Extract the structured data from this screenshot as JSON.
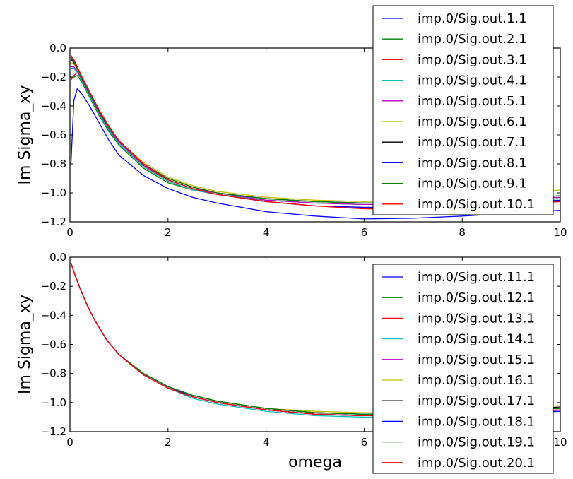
{
  "chart_data": [
    {
      "type": "line",
      "title": "",
      "xlabel": "",
      "ylabel": "Im Sigma_xy",
      "xlim": [
        0,
        10
      ],
      "ylim": [
        -1.2,
        0.0
      ],
      "xticks": [
        "0",
        "2",
        "4",
        "6",
        "8",
        "10"
      ],
      "xtick_values": [
        0,
        2,
        4,
        6,
        8,
        10
      ],
      "yticks": [
        "0.0",
        "−0.2",
        "−0.4",
        "−0.6",
        "−0.8",
        "−1.0",
        "−1.2"
      ],
      "ytick_values": [
        0.0,
        -0.2,
        -0.4,
        -0.6,
        -0.8,
        -1.0,
        -1.2
      ],
      "grid": false,
      "legend_position": "upper-right",
      "series": [
        {
          "name": "imp.0/Sig.out.1.1",
          "color": "#0000ff",
          "x": [
            0.02,
            0.08,
            0.15,
            0.25,
            0.4,
            0.6,
            0.8,
            1.0,
            1.5,
            2.0,
            2.5,
            3.0,
            4.0,
            5.0,
            6.0,
            7.0,
            8.0,
            9.0,
            10.0
          ],
          "y": [
            -0.8,
            -0.36,
            -0.28,
            -0.32,
            -0.4,
            -0.52,
            -0.64,
            -0.74,
            -0.88,
            -0.97,
            -1.03,
            -1.07,
            -1.13,
            -1.16,
            -1.18,
            -1.175,
            -1.16,
            -1.14,
            -1.12
          ]
        },
        {
          "name": "imp.0/Sig.out.2.1",
          "color": "#008000",
          "x": [
            0.02,
            0.08,
            0.15,
            0.25,
            0.4,
            0.6,
            0.8,
            1.0,
            1.5,
            2.0,
            2.5,
            3.0,
            4.0,
            5.0,
            6.0,
            7.0,
            8.0,
            9.0,
            10.0
          ],
          "y": [
            -0.21,
            -0.2,
            -0.19,
            -0.24,
            -0.34,
            -0.47,
            -0.58,
            -0.67,
            -0.83,
            -0.93,
            -0.98,
            -1.01,
            -1.05,
            -1.07,
            -1.08,
            -1.08,
            -1.07,
            -1.06,
            -1.04
          ]
        },
        {
          "name": "imp.0/Sig.out.3.1",
          "color": "#ff0000",
          "x": [
            0.02,
            0.08,
            0.15,
            0.25,
            0.4,
            0.6,
            0.8,
            1.0,
            1.5,
            2.0,
            2.5,
            3.0,
            4.0,
            5.0,
            6.0,
            7.0,
            8.0,
            9.0,
            10.0
          ],
          "y": [
            -0.22,
            -0.19,
            -0.17,
            -0.22,
            -0.32,
            -0.45,
            -0.56,
            -0.65,
            -0.81,
            -0.92,
            -0.98,
            -1.01,
            -1.06,
            -1.09,
            -1.1,
            -1.1,
            -1.09,
            -1.08,
            -1.06
          ]
        },
        {
          "name": "imp.0/Sig.out.4.1",
          "color": "#00bfbf",
          "x": [
            0.02,
            0.08,
            0.15,
            0.25,
            0.4,
            0.6,
            0.8,
            1.0,
            1.5,
            2.0,
            2.5,
            3.0,
            4.0,
            5.0,
            6.0,
            7.0,
            8.0,
            9.0,
            10.0
          ],
          "y": [
            -0.14,
            -0.14,
            -0.17,
            -0.23,
            -0.33,
            -0.46,
            -0.57,
            -0.66,
            -0.82,
            -0.92,
            -0.98,
            -1.01,
            -1.05,
            -1.07,
            -1.08,
            -1.08,
            -1.07,
            -1.06,
            -1.04
          ]
        },
        {
          "name": "imp.0/Sig.out.5.1",
          "color": "#bf00bf",
          "x": [
            0.02,
            0.08,
            0.15,
            0.25,
            0.4,
            0.6,
            0.8,
            1.0,
            1.5,
            2.0,
            2.5,
            3.0,
            4.0,
            5.0,
            6.0,
            7.0,
            8.0,
            9.0,
            10.0
          ],
          "y": [
            -0.13,
            -0.13,
            -0.16,
            -0.22,
            -0.32,
            -0.45,
            -0.56,
            -0.65,
            -0.81,
            -0.91,
            -0.97,
            -1.0,
            -1.05,
            -1.07,
            -1.08,
            -1.08,
            -1.07,
            -1.05,
            -1.03
          ]
        },
        {
          "name": "imp.0/Sig.out.6.1",
          "color": "#bfbf00",
          "x": [
            0.02,
            0.08,
            0.15,
            0.25,
            0.4,
            0.6,
            0.8,
            1.0,
            1.5,
            2.0,
            2.5,
            3.0,
            4.0,
            5.0,
            6.0,
            7.0,
            8.0,
            9.0,
            10.0
          ],
          "y": [
            -0.1,
            -0.11,
            -0.15,
            -0.21,
            -0.31,
            -0.44,
            -0.55,
            -0.64,
            -0.79,
            -0.89,
            -0.95,
            -0.99,
            -1.03,
            -1.05,
            -1.06,
            -1.05,
            -1.03,
            -1.01,
            -0.98
          ]
        },
        {
          "name": "imp.0/Sig.out.7.1",
          "color": "#000000",
          "x": [
            0.02,
            0.08,
            0.15,
            0.25,
            0.4,
            0.6,
            0.8,
            1.0,
            1.5,
            2.0,
            2.5,
            3.0,
            4.0,
            5.0,
            6.0,
            7.0,
            8.0,
            9.0,
            10.0
          ],
          "y": [
            -0.08,
            -0.1,
            -0.14,
            -0.21,
            -0.31,
            -0.44,
            -0.55,
            -0.64,
            -0.8,
            -0.9,
            -0.96,
            -1.0,
            -1.04,
            -1.06,
            -1.07,
            -1.07,
            -1.06,
            -1.04,
            -1.02
          ]
        },
        {
          "name": "imp.0/Sig.out.8.1",
          "color": "#0000ff",
          "x": [
            0.02,
            0.08,
            0.15,
            0.25,
            0.4,
            0.6,
            0.8,
            1.0,
            1.5,
            2.0,
            2.5,
            3.0,
            4.0,
            5.0,
            6.0,
            7.0,
            8.0,
            9.0,
            10.0
          ],
          "y": [
            -0.07,
            -0.09,
            -0.14,
            -0.21,
            -0.31,
            -0.44,
            -0.55,
            -0.64,
            -0.8,
            -0.91,
            -0.97,
            -1.01,
            -1.06,
            -1.09,
            -1.1,
            -1.1,
            -1.09,
            -1.07,
            -1.05
          ]
        },
        {
          "name": "imp.0/Sig.out.9.1",
          "color": "#008000",
          "x": [
            0.02,
            0.08,
            0.15,
            0.25,
            0.4,
            0.6,
            0.8,
            1.0,
            1.5,
            2.0,
            2.5,
            3.0,
            4.0,
            5.0,
            6.0,
            7.0,
            8.0,
            9.0,
            10.0
          ],
          "y": [
            -0.06,
            -0.09,
            -0.14,
            -0.21,
            -0.31,
            -0.44,
            -0.55,
            -0.64,
            -0.8,
            -0.9,
            -0.96,
            -1.0,
            -1.04,
            -1.06,
            -1.07,
            -1.07,
            -1.06,
            -1.04,
            -1.02
          ]
        },
        {
          "name": "imp.0/Sig.out.10.1",
          "color": "#ff0000",
          "x": [
            0.02,
            0.08,
            0.15,
            0.25,
            0.4,
            0.6,
            0.8,
            1.0,
            1.5,
            2.0,
            2.5,
            3.0,
            4.0,
            5.0,
            6.0,
            7.0,
            8.0,
            9.0,
            10.0
          ],
          "y": [
            -0.05,
            -0.08,
            -0.13,
            -0.2,
            -0.3,
            -0.43,
            -0.54,
            -0.64,
            -0.8,
            -0.91,
            -0.97,
            -1.01,
            -1.06,
            -1.09,
            -1.11,
            -1.11,
            -1.1,
            -1.08,
            -1.06
          ]
        }
      ]
    },
    {
      "type": "line",
      "title": "",
      "xlabel": "omega",
      "ylabel": "Im Sigma_xy",
      "xlim": [
        0,
        10
      ],
      "ylim": [
        -1.2,
        0.0
      ],
      "xticks": [
        "0",
        "2",
        "4",
        "6",
        "8",
        "10"
      ],
      "xtick_values": [
        0,
        2,
        4,
        6,
        8,
        10
      ],
      "yticks": [
        "0.0",
        "−0.2",
        "−0.4",
        "−0.6",
        "−0.8",
        "−1.0",
        "−1.2"
      ],
      "ytick_values": [
        0.0,
        -0.2,
        -0.4,
        -0.6,
        -0.8,
        -1.0,
        -1.2
      ],
      "grid": false,
      "legend_position": "upper-right",
      "series": [
        {
          "name": "imp.0/Sig.out.11.1",
          "color": "#0000ff",
          "x": [
            0.02,
            0.1,
            0.2,
            0.35,
            0.5,
            0.75,
            1.0,
            1.5,
            2.0,
            2.5,
            3.0,
            4.0,
            5.0,
            6.0,
            7.0,
            8.0,
            9.0,
            10.0
          ],
          "y": [
            -0.04,
            -0.12,
            -0.21,
            -0.33,
            -0.43,
            -0.57,
            -0.67,
            -0.81,
            -0.9,
            -0.96,
            -1.0,
            -1.05,
            -1.08,
            -1.09,
            -1.09,
            -1.08,
            -1.07,
            -1.06
          ]
        },
        {
          "name": "imp.0/Sig.out.12.1",
          "color": "#008000",
          "x": [
            0.02,
            0.1,
            0.2,
            0.35,
            0.5,
            0.75,
            1.0,
            1.5,
            2.0,
            2.5,
            3.0,
            4.0,
            5.0,
            6.0,
            7.0,
            8.0,
            9.0,
            10.0
          ],
          "y": [
            -0.04,
            -0.12,
            -0.21,
            -0.33,
            -0.43,
            -0.57,
            -0.67,
            -0.8,
            -0.89,
            -0.95,
            -0.99,
            -1.04,
            -1.07,
            -1.08,
            -1.08,
            -1.07,
            -1.05,
            -1.04
          ]
        },
        {
          "name": "imp.0/Sig.out.13.1",
          "color": "#ff0000",
          "x": [
            0.02,
            0.1,
            0.2,
            0.35,
            0.5,
            0.75,
            1.0,
            1.5,
            2.0,
            2.5,
            3.0,
            4.0,
            5.0,
            6.0,
            7.0,
            8.0,
            9.0,
            10.0
          ],
          "y": [
            -0.04,
            -0.12,
            -0.21,
            -0.33,
            -0.43,
            -0.57,
            -0.67,
            -0.81,
            -0.9,
            -0.96,
            -1.0,
            -1.05,
            -1.08,
            -1.09,
            -1.09,
            -1.08,
            -1.07,
            -1.05
          ]
        },
        {
          "name": "imp.0/Sig.out.14.1",
          "color": "#00bfbf",
          "x": [
            0.02,
            0.1,
            0.2,
            0.35,
            0.5,
            0.75,
            1.0,
            1.5,
            2.0,
            2.5,
            3.0,
            4.0,
            5.0,
            6.0,
            7.0,
            8.0,
            9.0,
            10.0
          ],
          "y": [
            -0.04,
            -0.12,
            -0.21,
            -0.33,
            -0.43,
            -0.57,
            -0.67,
            -0.81,
            -0.9,
            -0.97,
            -1.01,
            -1.06,
            -1.09,
            -1.1,
            -1.1,
            -1.09,
            -1.08,
            -1.06
          ]
        },
        {
          "name": "imp.0/Sig.out.15.1",
          "color": "#bf00bf",
          "x": [
            0.02,
            0.1,
            0.2,
            0.35,
            0.5,
            0.75,
            1.0,
            1.5,
            2.0,
            2.5,
            3.0,
            4.0,
            5.0,
            6.0,
            7.0,
            8.0,
            9.0,
            10.0
          ],
          "y": [
            -0.04,
            -0.12,
            -0.21,
            -0.33,
            -0.43,
            -0.57,
            -0.67,
            -0.81,
            -0.9,
            -0.96,
            -1.0,
            -1.05,
            -1.08,
            -1.09,
            -1.09,
            -1.08,
            -1.07,
            -1.05
          ]
        },
        {
          "name": "imp.0/Sig.out.16.1",
          "color": "#bfbf00",
          "x": [
            0.02,
            0.1,
            0.2,
            0.35,
            0.5,
            0.75,
            1.0,
            1.5,
            2.0,
            2.5,
            3.0,
            4.0,
            5.0,
            6.0,
            7.0,
            8.0,
            9.0,
            10.0
          ],
          "y": [
            -0.04,
            -0.12,
            -0.21,
            -0.33,
            -0.43,
            -0.57,
            -0.67,
            -0.8,
            -0.89,
            -0.95,
            -0.99,
            -1.04,
            -1.06,
            -1.07,
            -1.07,
            -1.06,
            -1.04,
            -1.02
          ]
        },
        {
          "name": "imp.0/Sig.out.17.1",
          "color": "#000000",
          "x": [
            0.02,
            0.1,
            0.2,
            0.35,
            0.5,
            0.75,
            1.0,
            1.5,
            2.0,
            2.5,
            3.0,
            4.0,
            5.0,
            6.0,
            7.0,
            8.0,
            9.0,
            10.0
          ],
          "y": [
            -0.04,
            -0.12,
            -0.21,
            -0.33,
            -0.43,
            -0.57,
            -0.67,
            -0.8,
            -0.89,
            -0.95,
            -0.99,
            -1.04,
            -1.07,
            -1.08,
            -1.08,
            -1.07,
            -1.05,
            -1.03
          ]
        },
        {
          "name": "imp.0/Sig.out.18.1",
          "color": "#0000ff",
          "x": [
            0.02,
            0.1,
            0.2,
            0.35,
            0.5,
            0.75,
            1.0,
            1.5,
            2.0,
            2.5,
            3.0,
            4.0,
            5.0,
            6.0,
            7.0,
            8.0,
            9.0,
            10.0
          ],
          "y": [
            -0.04,
            -0.12,
            -0.21,
            -0.33,
            -0.43,
            -0.57,
            -0.67,
            -0.8,
            -0.89,
            -0.96,
            -1.0,
            -1.05,
            -1.08,
            -1.09,
            -1.09,
            -1.08,
            -1.07,
            -1.06
          ]
        },
        {
          "name": "imp.0/Sig.out.19.1",
          "color": "#008000",
          "x": [
            0.02,
            0.1,
            0.2,
            0.35,
            0.5,
            0.75,
            1.0,
            1.5,
            2.0,
            2.5,
            3.0,
            4.0,
            5.0,
            6.0,
            7.0,
            8.0,
            9.0,
            10.0
          ],
          "y": [
            -0.04,
            -0.12,
            -0.21,
            -0.33,
            -0.43,
            -0.57,
            -0.67,
            -0.8,
            -0.89,
            -0.95,
            -0.99,
            -1.04,
            -1.07,
            -1.08,
            -1.08,
            -1.07,
            -1.05,
            -1.04
          ]
        },
        {
          "name": "imp.0/Sig.out.20.1",
          "color": "#ff0000",
          "x": [
            0.02,
            0.1,
            0.2,
            0.35,
            0.5,
            0.75,
            1.0,
            1.5,
            2.0,
            2.5,
            3.0,
            4.0,
            5.0,
            6.0,
            7.0,
            8.0,
            9.0,
            10.0
          ],
          "y": [
            -0.04,
            -0.12,
            -0.21,
            -0.33,
            -0.43,
            -0.57,
            -0.67,
            -0.81,
            -0.9,
            -0.96,
            -1.0,
            -1.05,
            -1.08,
            -1.09,
            -1.09,
            -1.08,
            -1.06,
            -1.05
          ]
        }
      ]
    }
  ]
}
